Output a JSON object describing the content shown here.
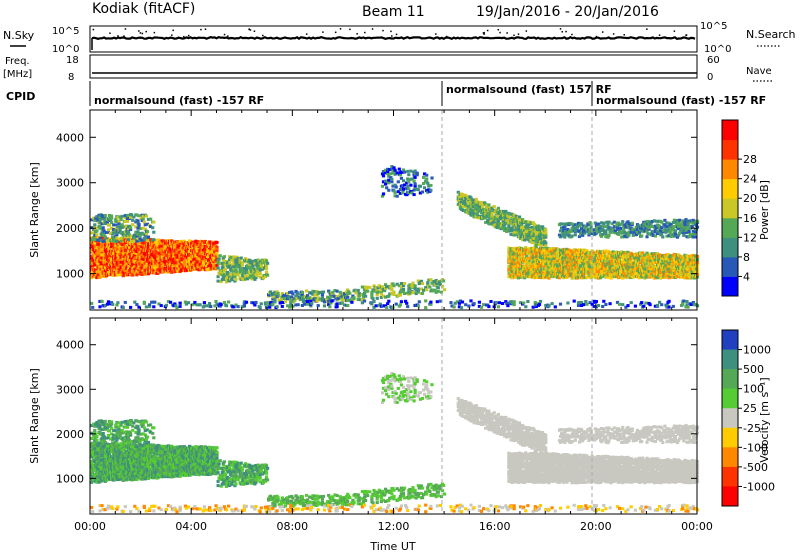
{
  "header": {
    "radar_title": "Kodiak (fitACF)",
    "beam_title": "Beam 11",
    "date_title": "19/Jan/2016 - 20/Jan/2016"
  },
  "aux_panels": {
    "nsky": {
      "left_label": "N.Sky",
      "right_label": "N.Search",
      "left_ticks": [
        "10^5",
        "10^0"
      ],
      "right_ticks": [
        "10^5",
        "10^0"
      ]
    },
    "freq": {
      "left_label_top": "Freq.",
      "left_label_bottom": "[MHz]",
      "right_label": "Nave",
      "left_ticks": [
        "18",
        "8"
      ],
      "right_ticks": [
        "60",
        "0"
      ]
    },
    "cpid": {
      "label": "CPID",
      "segments": [
        {
          "start_hour": 0,
          "text": "normalsound (fast) -157 RF"
        },
        {
          "start_hour": 14,
          "text": "normalsound (fast) 157 RF"
        },
        {
          "start_hour": 20,
          "text": "normalsound (fast) -157 RF"
        }
      ]
    }
  },
  "chart_data": [
    {
      "type": "heatmap",
      "name": "Power",
      "ylabel": "Slant Range [km]",
      "y_ticks": [
        1000,
        2000,
        3000,
        4000
      ],
      "ylim": [
        200,
        4600
      ],
      "xlim_hours": [
        0,
        24
      ],
      "colorbar": {
        "label": "Power [dB]",
        "ticks": [
          "4",
          "8",
          "12",
          "16",
          "20",
          "24",
          "28"
        ],
        "colors": [
          "#0000ff",
          "#2859b9",
          "#3f8f7f",
          "#55a855",
          "#c9c826",
          "#ffcc00",
          "#ff8800",
          "#ff3300",
          "#ff0000"
        ]
      },
      "dashed_lines_hours": [
        14,
        20
      ]
    },
    {
      "type": "heatmap",
      "name": "Velocity",
      "ylabel": "Slant Range [km]",
      "y_ticks": [
        1000,
        2000,
        3000,
        4000
      ],
      "ylim": [
        200,
        4600
      ],
      "xlim_hours": [
        0,
        24
      ],
      "xlabel": "Time UT",
      "x_ticks": [
        "00:00",
        "04:00",
        "08:00",
        "12:00",
        "16:00",
        "20:00",
        "00:00"
      ],
      "colorbar": {
        "label": "Velocity [m s⁻¹]",
        "ticks": [
          "1000",
          "500",
          "100",
          "25",
          "-25",
          "-100",
          "-500",
          "-1000"
        ],
        "colors": [
          "#2040c0",
          "#3f8f7f",
          "#55a855",
          "#55cc33",
          "#c8c8c0",
          "#ffcc00",
          "#ff8800",
          "#ff3300",
          "#ff0000"
        ]
      },
      "dashed_lines_hours": [
        14,
        20
      ]
    }
  ]
}
